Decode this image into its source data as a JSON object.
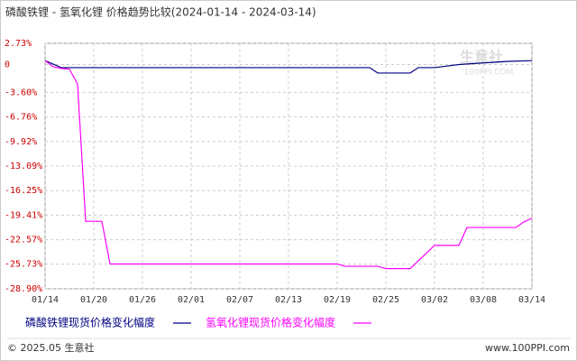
{
  "chart_data": {
    "type": "line",
    "title": "磷酸铁锂 - 氢氧化锂 价格趋势比较(2024-01-14 - 2024-03-14)",
    "xlim": [
      "01/14",
      "03/14"
    ],
    "xticks": [
      "01/14",
      "01/20",
      "01/26",
      "02/01",
      "02/07",
      "02/13",
      "02/19",
      "02/25",
      "03/02",
      "03/08",
      "03/14"
    ],
    "ylim": [
      -28.9,
      2.73
    ],
    "yticks": [
      {
        "value": 2.73,
        "label": "2.73%"
      },
      0,
      {
        "value": -3.6,
        "label": "-3.60%"
      },
      {
        "value": -6.76,
        "label": "-6.76%"
      },
      {
        "value": -9.92,
        "label": "-9.92%"
      },
      {
        "value": -13.09,
        "label": "-13.09%"
      },
      {
        "value": -16.25,
        "label": "-16.25%"
      },
      {
        "value": -19.41,
        "label": "-19.41%"
      },
      {
        "value": -22.57,
        "label": "-22.57%"
      },
      {
        "value": -25.73,
        "label": "-25.73%"
      },
      {
        "value": -28.9,
        "label": "-28.90%"
      }
    ],
    "grid": true,
    "series": [
      {
        "name": "磷酸铁锂现货价格变化幅度",
        "color": "#000080",
        "x": [
          "01/14",
          "01/16",
          "02/23",
          "02/24",
          "02/28",
          "02/29",
          "03/02",
          "03/05",
          "03/08",
          "03/11",
          "03/14"
        ],
        "values": [
          0.5,
          -0.4,
          -0.4,
          -1.1,
          -1.1,
          -0.4,
          -0.4,
          0,
          0.2,
          0.4,
          0.5
        ]
      },
      {
        "name": "氢氧化锂现货价格变化幅度",
        "color": "#ff00ff",
        "x": [
          "01/14",
          "01/15",
          "01/16",
          "01/17",
          "01/18",
          "01/19",
          "01/21",
          "01/22",
          "02/19",
          "02/20",
          "02/24",
          "02/25",
          "02/28",
          "03/01",
          "03/02",
          "03/05",
          "03/06",
          "03/12",
          "03/13",
          "03/14"
        ],
        "values": [
          0.5,
          -0.3,
          -0.5,
          -0.6,
          -2.5,
          -20.2,
          -20.2,
          -25.7,
          -25.7,
          -26.0,
          -26.0,
          -26.3,
          -26.3,
          -24.3,
          -23.3,
          -23.3,
          -21.0,
          -21.0,
          -20.3,
          -19.8
        ]
      }
    ],
    "watermark": [
      "生意社",
      "100PPI.COM"
    ],
    "footer": {
      "left": "© 2025.05 生意社",
      "right": "www.100PPI.com"
    }
  }
}
